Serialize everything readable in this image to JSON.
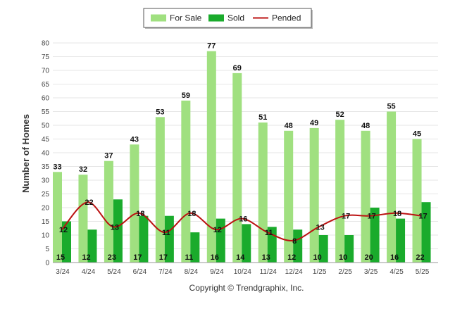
{
  "chart_data": {
    "type": "bar",
    "title": "",
    "xlabel": "",
    "ylabel": "Number of Homes",
    "ylim": [
      0,
      80
    ],
    "yticks": [
      0,
      5,
      10,
      15,
      20,
      25,
      30,
      35,
      40,
      45,
      50,
      55,
      60,
      65,
      70,
      75,
      80
    ],
    "grid": true,
    "legend": "top-center",
    "categories": [
      "3/24",
      "4/24",
      "5/24",
      "6/24",
      "7/24",
      "8/24",
      "9/24",
      "10/24",
      "11/24",
      "12/24",
      "1/25",
      "2/25",
      "3/25",
      "4/25",
      "5/25"
    ],
    "series": [
      {
        "name": "For Sale",
        "type": "bar",
        "color": "#a0e080",
        "values": [
          33,
          32,
          37,
          43,
          53,
          59,
          77,
          69,
          51,
          48,
          49,
          52,
          48,
          55,
          45
        ]
      },
      {
        "name": "Sold",
        "type": "bar",
        "color": "#1aab2c",
        "values": [
          15,
          12,
          23,
          17,
          17,
          11,
          16,
          14,
          13,
          12,
          10,
          10,
          20,
          16,
          22
        ]
      },
      {
        "name": "Pended",
        "type": "line",
        "color": "#bb1111",
        "values": [
          12,
          22,
          13,
          18,
          11,
          18,
          12,
          16,
          11,
          8,
          13,
          17,
          17,
          18,
          17
        ]
      }
    ]
  },
  "footer": {
    "copyright": "Copyright © Trendgraphix, Inc."
  }
}
